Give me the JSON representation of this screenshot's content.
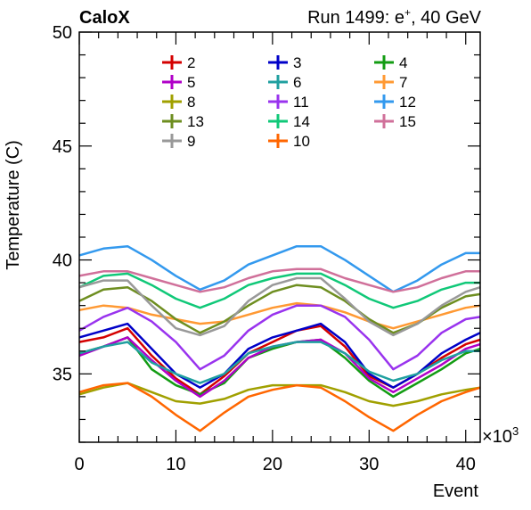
{
  "header": {
    "left": "CaloX",
    "right_prefix": "Run 1499: e",
    "right_sup": "+",
    "right_suffix": ", 40 GeV"
  },
  "chart_data": {
    "type": "line",
    "title": "",
    "xlabel": "Event",
    "ylabel": "Temperature (C)",
    "x_multiplier_label": "×10",
    "x_multiplier_exp": "3",
    "xlim": [
      0,
      41.5
    ],
    "ylim": [
      32,
      50
    ],
    "x_ticks": [
      0,
      10,
      20,
      30,
      40
    ],
    "y_ticks": [
      35,
      40,
      45,
      50
    ],
    "x": [
      0,
      2.5,
      5,
      7.5,
      10,
      12.5,
      15,
      17.5,
      20,
      22.5,
      25,
      27.5,
      30,
      32.5,
      35,
      37.5,
      40,
      41.5
    ],
    "series": [
      {
        "name": "2",
        "color": "#d40000",
        "values": [
          36.4,
          36.6,
          37.0,
          35.8,
          34.8,
          34.1,
          34.9,
          35.9,
          36.4,
          36.9,
          37.1,
          36.2,
          34.9,
          34.4,
          35.0,
          35.7,
          36.3,
          36.5
        ]
      },
      {
        "name": "3",
        "color": "#0000c8",
        "values": [
          36.6,
          36.9,
          37.2,
          36.1,
          35.0,
          34.4,
          35.0,
          36.1,
          36.6,
          36.9,
          37.2,
          36.4,
          35.0,
          34.4,
          35.0,
          35.9,
          36.5,
          36.8
        ]
      },
      {
        "name": "4",
        "color": "#139c13",
        "values": [
          35.9,
          36.2,
          36.6,
          35.2,
          34.5,
          34.1,
          34.6,
          35.7,
          36.1,
          36.4,
          36.5,
          35.7,
          34.7,
          34.0,
          34.6,
          35.2,
          35.9,
          36.1
        ]
      },
      {
        "name": "5",
        "color": "#b000c8",
        "values": [
          35.8,
          36.2,
          36.6,
          35.6,
          34.7,
          34.0,
          34.7,
          35.7,
          36.2,
          36.4,
          36.5,
          35.9,
          34.8,
          34.2,
          34.8,
          35.4,
          36.1,
          36.3
        ]
      },
      {
        "name": "6",
        "color": "#20a0a0",
        "values": [
          35.9,
          36.2,
          36.4,
          35.5,
          35.0,
          34.6,
          35.0,
          35.9,
          36.2,
          36.4,
          36.4,
          35.9,
          35.1,
          34.7,
          35.0,
          35.6,
          36.0,
          36.0
        ]
      },
      {
        "name": "7",
        "color": "#ff9933",
        "values": [
          37.8,
          38.0,
          37.9,
          37.6,
          37.4,
          37.2,
          37.3,
          37.6,
          37.9,
          38.1,
          38.0,
          37.7,
          37.3,
          37.0,
          37.3,
          37.6,
          37.9,
          38.0
        ]
      },
      {
        "name": "8",
        "color": "#a0a000",
        "values": [
          34.1,
          34.4,
          34.6,
          34.2,
          33.8,
          33.7,
          33.9,
          34.3,
          34.5,
          34.5,
          34.5,
          34.2,
          33.8,
          33.6,
          33.8,
          34.1,
          34.3,
          34.4
        ]
      },
      {
        "name": "11",
        "color": "#9933ee",
        "values": [
          36.9,
          37.5,
          37.9,
          37.3,
          36.4,
          35.2,
          35.8,
          36.9,
          37.6,
          38.0,
          38.0,
          37.5,
          36.5,
          35.2,
          35.8,
          36.8,
          37.4,
          37.5
        ]
      },
      {
        "name": "12",
        "color": "#3399ee",
        "values": [
          40.2,
          40.5,
          40.6,
          40.0,
          39.3,
          38.7,
          39.1,
          39.8,
          40.2,
          40.6,
          40.6,
          40.0,
          39.3,
          38.6,
          39.1,
          39.8,
          40.3,
          40.3
        ]
      },
      {
        "name": "13",
        "color": "#6e8e20",
        "values": [
          38.2,
          38.7,
          38.8,
          38.2,
          37.4,
          36.8,
          37.3,
          38.0,
          38.6,
          38.9,
          38.8,
          38.2,
          37.4,
          36.8,
          37.2,
          37.9,
          38.4,
          38.5
        ]
      },
      {
        "name": "14",
        "color": "#10c878",
        "values": [
          38.8,
          39.3,
          39.4,
          38.9,
          38.3,
          37.9,
          38.3,
          38.9,
          39.2,
          39.4,
          39.4,
          38.9,
          38.3,
          37.9,
          38.2,
          38.7,
          39.0,
          39.0
        ]
      },
      {
        "name": "15",
        "color": "#d0709a",
        "values": [
          39.3,
          39.5,
          39.5,
          39.2,
          38.9,
          38.6,
          38.8,
          39.2,
          39.5,
          39.6,
          39.6,
          39.2,
          38.9,
          38.6,
          38.8,
          39.2,
          39.5,
          39.5
        ]
      },
      {
        "name": "9",
        "color": "#999999",
        "values": [
          38.8,
          39.1,
          39.1,
          38.0,
          37.0,
          36.7,
          37.1,
          38.2,
          38.9,
          39.2,
          39.2,
          38.3,
          37.3,
          36.7,
          37.2,
          38.0,
          38.6,
          38.8
        ]
      },
      {
        "name": "10",
        "color": "#ff6600",
        "values": [
          34.2,
          34.5,
          34.6,
          34.0,
          33.2,
          32.5,
          33.3,
          34.0,
          34.3,
          34.5,
          34.4,
          33.8,
          33.1,
          32.5,
          33.2,
          33.8,
          34.2,
          34.4
        ]
      }
    ],
    "legend_placement": "top"
  }
}
